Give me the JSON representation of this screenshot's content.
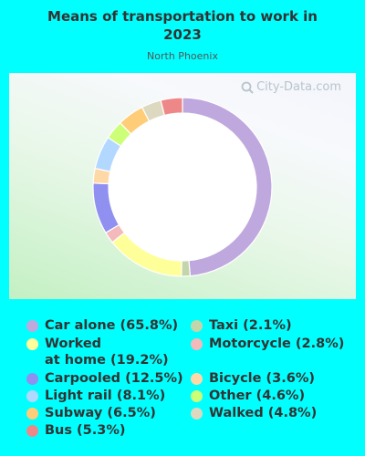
{
  "chart_data": {
    "type": "pie",
    "title": "Means of transportation to work in 2023",
    "title_lines": [
      "Means of transportation to work in",
      "2023"
    ],
    "subtitle": "North Phoenix",
    "watermark": "City-Data.com",
    "slices": [
      {
        "label": "Car alone",
        "value": 65.8,
        "legend": "Car alone (65.8%)",
        "color": "#BFA8DD"
      },
      {
        "label": "Taxi",
        "value": 2.1,
        "legend": "Taxi (2.1%)",
        "color": "#C2D6A9"
      },
      {
        "label": "Worked at home",
        "value": 19.2,
        "legend": "Worked\nat home (19.2%)",
        "color": "#FFFF99"
      },
      {
        "label": "Motorcycle",
        "value": 2.8,
        "legend": "Motorcycle (2.8%)",
        "color": "#F4B9BB"
      },
      {
        "label": "Carpooled",
        "value": 12.5,
        "legend": "Carpooled (12.5%)",
        "color": "#9090F0"
      },
      {
        "label": "Bicycle",
        "value": 3.6,
        "legend": "Bicycle (3.6%)",
        "color": "#FFD8A8"
      },
      {
        "label": "Light rail",
        "value": 8.1,
        "legend": "Light rail (8.1%)",
        "color": "#B2D8FF"
      },
      {
        "label": "Other",
        "value": 4.6,
        "legend": "Other (4.6%)",
        "color": "#CCFF77"
      },
      {
        "label": "Subway",
        "value": 6.5,
        "legend": "Subway (6.5%)",
        "color": "#FFCC77"
      },
      {
        "label": "Walked",
        "value": 4.8,
        "legend": "Walked (4.8%)",
        "color": "#DDD8C0"
      },
      {
        "label": "Bus",
        "value": 5.3,
        "legend": "Bus (5.3%)",
        "color": "#EE8888"
      }
    ],
    "legend_placement": "bottom"
  }
}
